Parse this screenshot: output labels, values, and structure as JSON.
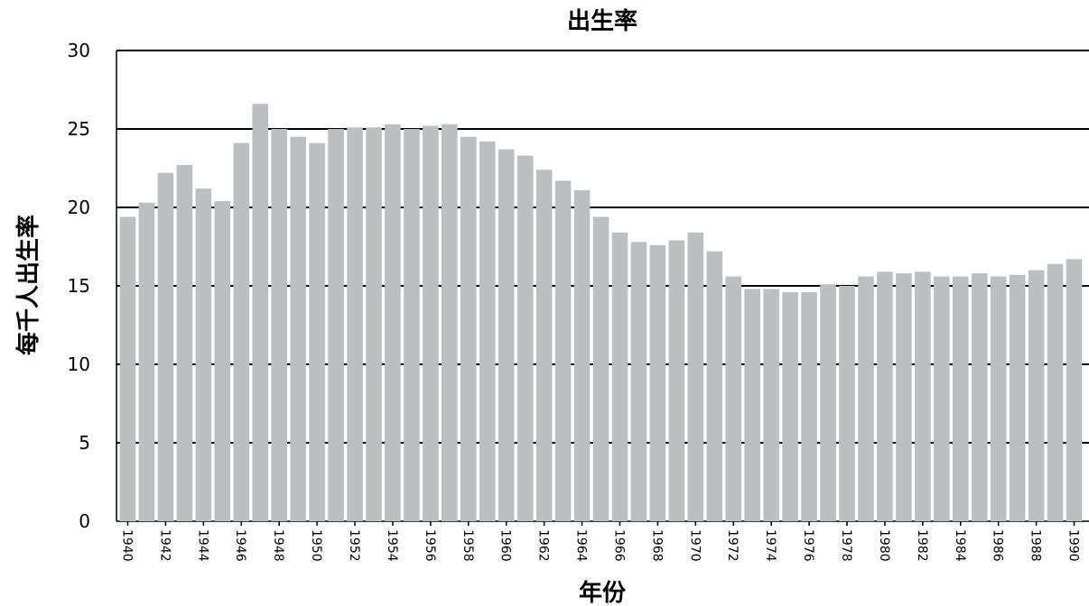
{
  "chart_data": {
    "type": "bar",
    "title": "出生率",
    "xlabel": "年份",
    "ylabel": "每千人出生率",
    "ylim": [
      0,
      30
    ],
    "yticks": [
      "0",
      "5",
      "10",
      "15",
      "20",
      "25",
      "30"
    ],
    "grid": true,
    "bar_color": "#bcbec0",
    "categories": [
      "1940",
      "1941",
      "1942",
      "1943",
      "1944",
      "1945",
      "1946",
      "1947",
      "1948",
      "1949",
      "1950",
      "1951",
      "1952",
      "1953",
      "1954",
      "1955",
      "1956",
      "1957",
      "1958",
      "1959",
      "1960",
      "1961",
      "1962",
      "1963",
      "1964",
      "1965",
      "1966",
      "1967",
      "1968",
      "1969",
      "1970",
      "1971",
      "1972",
      "1973",
      "1974",
      "1975",
      "1976",
      "1977",
      "1978",
      "1979",
      "1980",
      "1981",
      "1982",
      "1983",
      "1984",
      "1985",
      "1986",
      "1987",
      "1988",
      "1989",
      "1990"
    ],
    "xtick_labels": [
      "1940",
      "1942",
      "1944",
      "1946",
      "1948",
      "1950",
      "1952",
      "1954",
      "1956",
      "1958",
      "1960",
      "1962",
      "1964",
      "1966",
      "1968",
      "1970",
      "1972",
      "1974",
      "1976",
      "1978",
      "1980",
      "1982",
      "1984",
      "1986",
      "1988",
      "1990"
    ],
    "values": [
      19.4,
      20.3,
      22.2,
      22.7,
      21.2,
      20.4,
      24.1,
      26.6,
      25.0,
      24.5,
      24.1,
      25.0,
      25.1,
      25.1,
      25.3,
      25.0,
      25.2,
      25.3,
      24.5,
      24.2,
      23.7,
      23.3,
      22.4,
      21.7,
      21.1,
      19.4,
      18.4,
      17.8,
      17.6,
      17.9,
      18.4,
      17.2,
      15.6,
      14.8,
      14.8,
      14.6,
      14.6,
      15.1,
      15.0,
      15.6,
      15.9,
      15.8,
      15.9,
      15.6,
      15.6,
      15.8,
      15.6,
      15.7,
      16.0,
      16.4,
      16.7
    ]
  }
}
